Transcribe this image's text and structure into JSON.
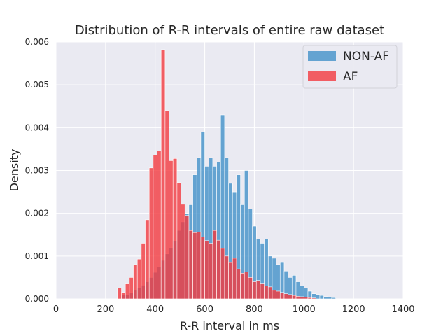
{
  "chart_data": {
    "type": "bar",
    "title": "Distribution of R-R intervals of entire raw dataset",
    "xlabel": "R-R interval in ms",
    "ylabel": "Density",
    "xlim": [
      0,
      1400
    ],
    "ylim": [
      0,
      0.006
    ],
    "x_ticks": [
      0,
      200,
      400,
      600,
      800,
      1000,
      1200,
      1400
    ],
    "x_tick_labels": [
      "0",
      "200",
      "400",
      "600",
      "800",
      "1000",
      "1200",
      "1400"
    ],
    "y_ticks": [
      0,
      0.001,
      0.002,
      0.003,
      0.004,
      0.005,
      0.006
    ],
    "y_tick_labels": [
      "0.000",
      "0.001",
      "0.002",
      "0.003",
      "0.004",
      "0.005",
      "0.006"
    ],
    "grid": true,
    "legend_position": "top-right",
    "bin_width": 16,
    "series": [
      {
        "name": "NON-AF",
        "color": "#4c96cb",
        "x_start": 264,
        "values": [
          0.0001,
          0.0001,
          0.00015,
          0.0002,
          0.00025,
          0.00032,
          0.0004,
          0.0005,
          0.00062,
          0.00075,
          0.0009,
          0.00105,
          0.0012,
          0.00135,
          0.0016,
          0.0018,
          0.002,
          0.0022,
          0.0029,
          0.0033,
          0.0039,
          0.0031,
          0.0033,
          0.0031,
          0.0032,
          0.0043,
          0.0033,
          0.0027,
          0.0025,
          0.0029,
          0.0022,
          0.003,
          0.0021,
          0.0017,
          0.0014,
          0.0013,
          0.0014,
          0.001,
          0.00095,
          0.0008,
          0.00085,
          0.00065,
          0.0005,
          0.00055,
          0.0004,
          0.0003,
          0.00025,
          0.00018,
          0.00012,
          0.0001,
          8e-05,
          5e-05,
          4e-05,
          3e-05
        ]
      },
      {
        "name": "AF",
        "color": "#f23a3e",
        "x_start": 248,
        "values": [
          0.00025,
          0.00015,
          0.00035,
          0.0005,
          0.0008,
          0.00093,
          0.0013,
          0.00185,
          0.00306,
          0.00336,
          0.00346,
          0.00582,
          0.0044,
          0.00323,
          0.00328,
          0.00272,
          0.00221,
          0.00195,
          0.0016,
          0.00155,
          0.00156,
          0.00145,
          0.00136,
          0.0013,
          0.0016,
          0.00137,
          0.00118,
          0.001,
          0.00085,
          0.00095,
          0.0007,
          0.0006,
          0.00063,
          0.0005,
          0.0004,
          0.00043,
          0.00035,
          0.0003,
          0.00028,
          0.0002,
          0.00018,
          0.00015,
          0.00012,
          0.0001,
          8e-05,
          6e-05,
          5e-05,
          4e-05,
          3e-05,
          2e-05
        ]
      }
    ]
  }
}
